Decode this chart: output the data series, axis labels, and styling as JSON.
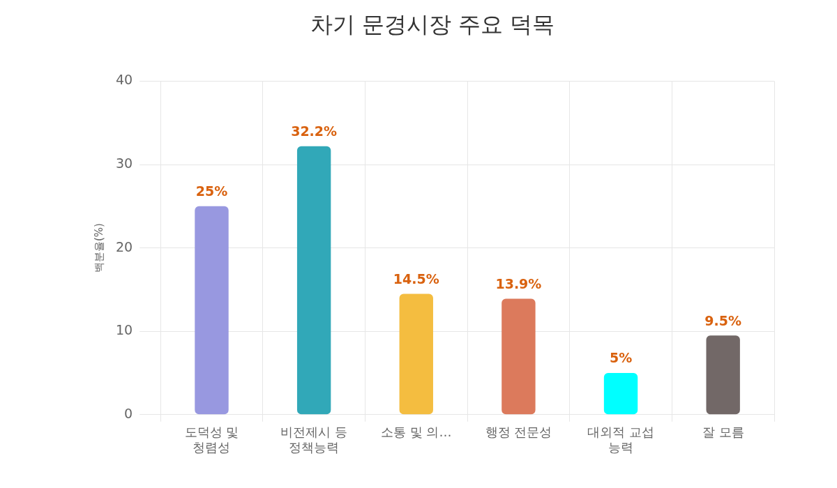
{
  "chart_data": {
    "type": "bar",
    "title": "차기 문경시장 주요 덕목",
    "ylabel": "백분율(%)",
    "categories": [
      "도덕성 및 청렴성",
      "비전제시 등 정책능력",
      "소통 및 의…",
      "행정 전문성",
      "대외적 교섭 능력",
      "잘 모름"
    ],
    "values": [
      25,
      32.2,
      14.5,
      13.9,
      5,
      9.5
    ],
    "colors": [
      "#9898e0",
      "#31a8b8",
      "#f4bd40",
      "#dc7a5c",
      "#00ffff",
      "#726867"
    ],
    "value_labels": [
      "25%",
      "32.2%",
      "14.5%",
      "13.9%",
      "5%",
      "9.5%"
    ],
    "ylim": [
      0,
      40
    ],
    "yticks": [
      0,
      10,
      20,
      30,
      40
    ],
    "grid": true
  }
}
